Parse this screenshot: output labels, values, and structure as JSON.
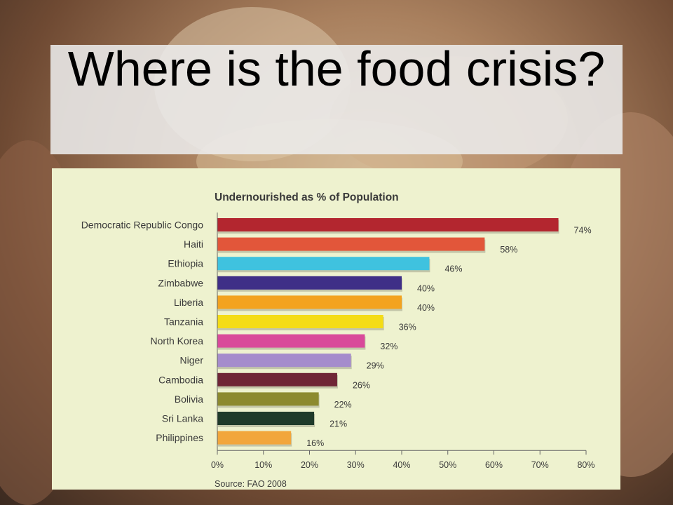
{
  "slide": {
    "title": "Where is the food crisis?"
  },
  "chart_data": {
    "type": "bar",
    "orientation": "horizontal",
    "title": "Undernourished as % of Population",
    "source": "Source: FAO 2008",
    "xlim": [
      0,
      80
    ],
    "ticks": [
      "0%",
      "10%",
      "20%",
      "30%",
      "40%",
      "50%",
      "60%",
      "70%",
      "80%"
    ],
    "categories": [
      "Democratic Republic Congo",
      "Haiti",
      "Ethiopia",
      "Zimbabwe",
      "Liberia",
      "Tanzania",
      "North Korea",
      "Niger",
      "Cambodia",
      "Bolivia",
      "Sri Lanka",
      "Philippines"
    ],
    "values": [
      74,
      58,
      46,
      40,
      40,
      36,
      32,
      29,
      26,
      22,
      21,
      16
    ],
    "value_labels": [
      "74%",
      "58%",
      "46%",
      "40%",
      "40%",
      "36%",
      "32%",
      "29%",
      "26%",
      "22%",
      "21%",
      "16%"
    ],
    "colors": [
      "#b3262f",
      "#e2563a",
      "#3fc2df",
      "#3f2f87",
      "#f3a31f",
      "#f4dc16",
      "#d94a9a",
      "#a58ccc",
      "#6f2636",
      "#8c8a2f",
      "#1f3a2a",
      "#f2a63b"
    ]
  }
}
